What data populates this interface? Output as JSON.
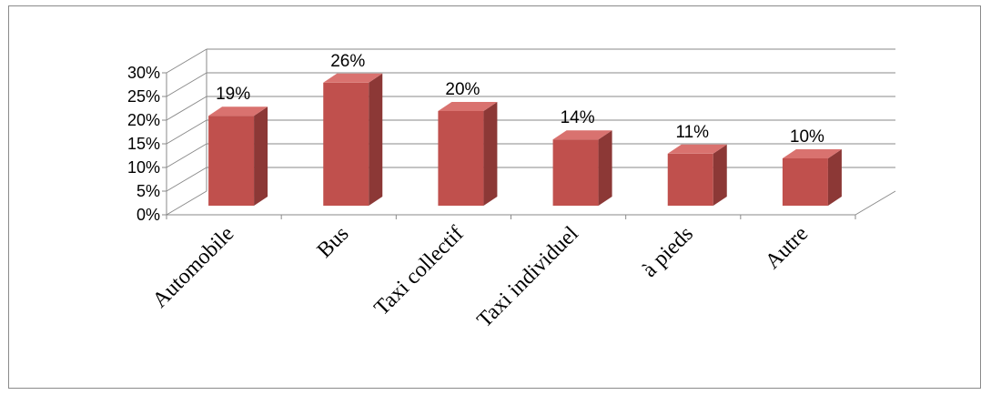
{
  "chart_data": {
    "type": "bar",
    "categories": [
      "Automobile",
      "Bus",
      "Taxi collectif",
      "Taxi individuel",
      "à pieds",
      "Autre"
    ],
    "values": [
      19,
      26,
      20,
      14,
      11,
      10
    ],
    "data_labels": [
      "19%",
      "26%",
      "20%",
      "14%",
      "11%",
      "10%"
    ],
    "y_ticks": [
      "0%",
      "5%",
      "10%",
      "15%",
      "20%",
      "25%",
      "30%"
    ],
    "ylim": [
      0,
      30
    ],
    "grid": true,
    "legend": "none",
    "colors": {
      "bar_front": "#c0504d",
      "bar_side": "#8c3836",
      "bar_top": "#d9726f",
      "grid": "#8a8a8a"
    }
  }
}
